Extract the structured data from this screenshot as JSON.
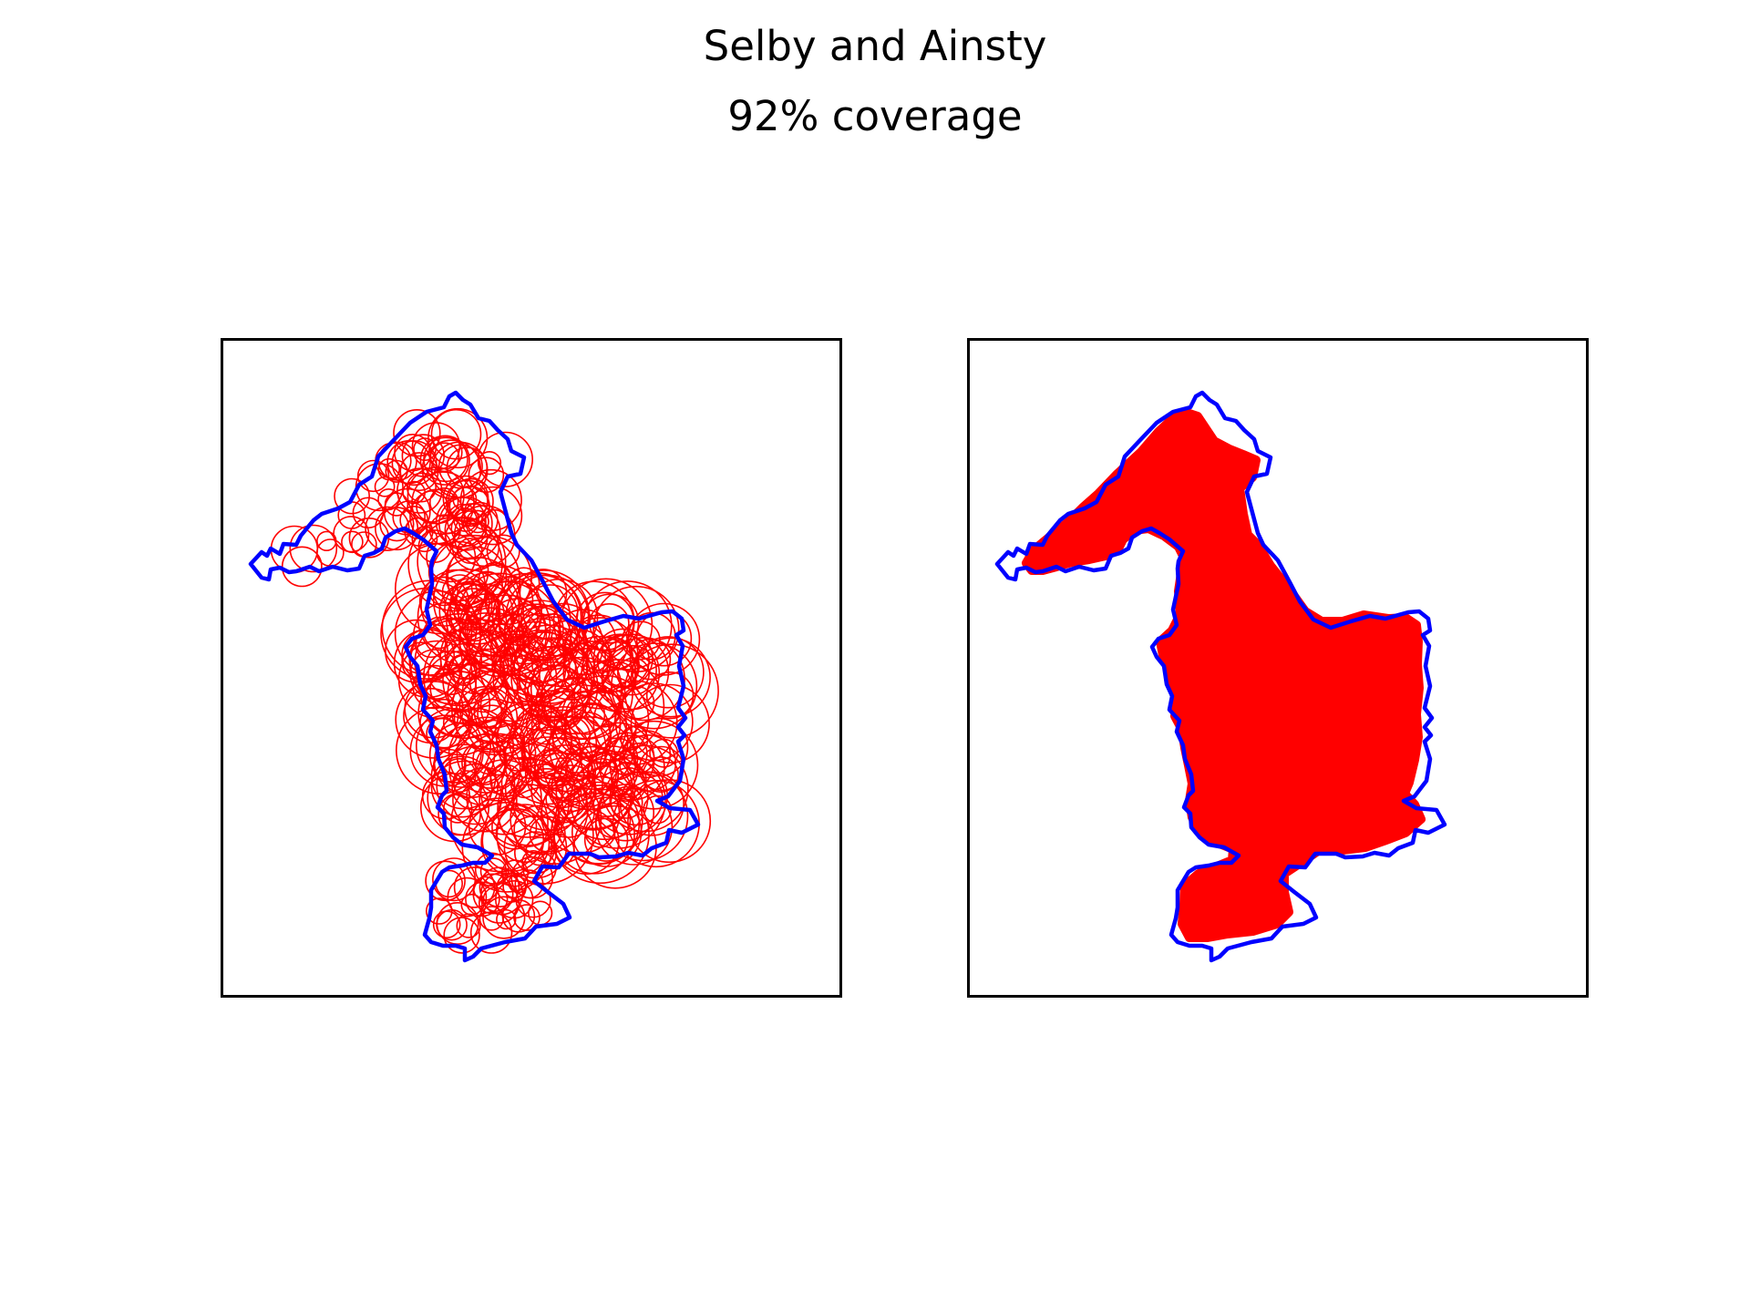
{
  "figure": {
    "title": "Selby and Ainsty",
    "subtitle": "92% coverage"
  },
  "colors": {
    "boundary": "#0000ff",
    "coverage": "#ff0000",
    "frame": "#000000",
    "background": "#ffffff"
  },
  "panels": [
    {
      "id": "left",
      "view": "circles-outline"
    },
    {
      "id": "right",
      "view": "filled-coverage"
    }
  ],
  "coverage_percent": 92
}
